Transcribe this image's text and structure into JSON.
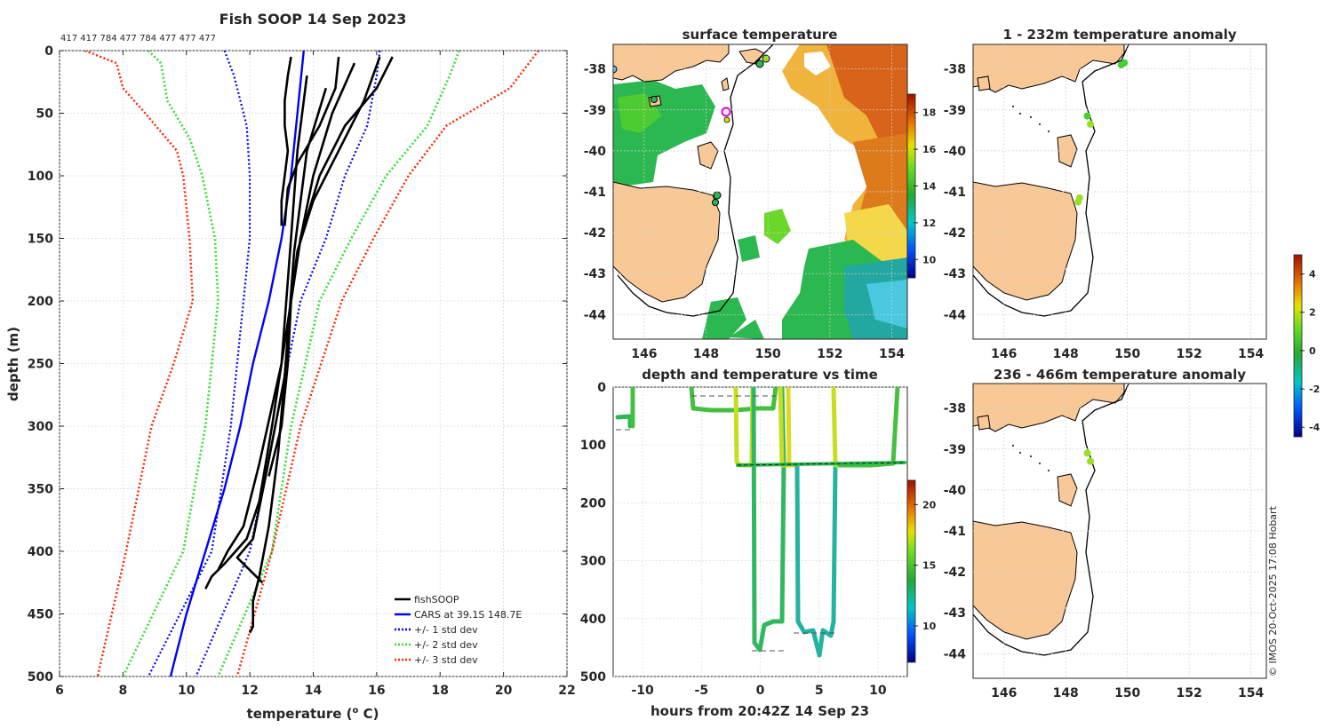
{
  "title": "Fish SOOP 14 Sep 2023",
  "counts_label": "417 417 784 477 784 477 477 477",
  "watermark": "© IMOS 20-Oct-2025 17:08 Hobart",
  "colors": {
    "fish": "#000000",
    "cars": "#0000ff",
    "std1": "#0000ff",
    "std2": "#33dd33",
    "std3": "#ff2200",
    "land": "#f8c896"
  },
  "chart_data": [
    {
      "type": "line",
      "id": "profile",
      "title": "Fish SOOP 14 Sep 2023",
      "xlabel": "temperature (o C)",
      "ylabel": "depth (m)",
      "xlim": [
        6,
        22
      ],
      "ylim": [
        500,
        0
      ],
      "xticks": [
        "6",
        "8",
        "10",
        "12",
        "14",
        "16",
        "18",
        "20",
        "22"
      ],
      "yticks": [
        "0",
        "50",
        "100",
        "150",
        "200",
        "250",
        "300",
        "350",
        "400",
        "450",
        "500"
      ],
      "legend": {
        "position": "bottom-right",
        "entries": [
          "fishSOOP",
          "CARS at 39.1S 148.7E",
          "+/- 1 std dev",
          "+/- 2 std dev",
          "+/- 3 std dev"
        ]
      },
      "series": [
        {
          "name": "CARS at 39.1S 148.7E",
          "depth": [
            0,
            50,
            100,
            150,
            200,
            250,
            300,
            350,
            400,
            450,
            500
          ],
          "temp": [
            13.7,
            13.5,
            13.3,
            13.0,
            12.6,
            12.1,
            11.7,
            11.2,
            10.6,
            10.0,
            9.5
          ]
        },
        {
          "name": "-1 std dev",
          "depth": [
            0,
            20,
            60,
            100,
            150,
            200,
            300,
            400,
            500
          ],
          "temp": [
            11.2,
            11.5,
            11.9,
            12.0,
            12.0,
            11.8,
            11.4,
            10.8,
            8.8
          ]
        },
        {
          "name": "+1 std dev",
          "depth": [
            0,
            20,
            60,
            100,
            150,
            200,
            300,
            400,
            500
          ],
          "temp": [
            16.1,
            16.0,
            15.7,
            15.0,
            14.4,
            13.6,
            12.8,
            12.0,
            10.3
          ]
        },
        {
          "name": "-2 std dev",
          "depth": [
            0,
            10,
            40,
            70,
            100,
            150,
            200,
            300,
            400,
            500
          ],
          "temp": [
            8.8,
            9.2,
            9.4,
            10.1,
            10.5,
            10.9,
            11.0,
            10.6,
            9.9,
            8.0
          ]
        },
        {
          "name": "+2 std dev",
          "depth": [
            0,
            20,
            60,
            100,
            150,
            200,
            300,
            400,
            500
          ],
          "temp": [
            18.6,
            18.3,
            17.6,
            16.3,
            15.2,
            14.2,
            13.3,
            12.7,
            11.0
          ]
        },
        {
          "name": "-3 std dev",
          "depth": [
            0,
            10,
            30,
            50,
            80,
            100,
            150,
            200,
            250,
            300,
            400,
            500
          ],
          "temp": [
            6.8,
            7.8,
            8.0,
            8.7,
            9.7,
            9.9,
            10.1,
            10.2,
            9.6,
            8.9,
            8.1,
            7.2
          ]
        },
        {
          "name": "+3 std dev",
          "depth": [
            0,
            20,
            30,
            60,
            100,
            150,
            200,
            300,
            400,
            500
          ],
          "temp": [
            21.1,
            20.5,
            20.2,
            18.2,
            17.0,
            15.9,
            14.9,
            13.6,
            12.7,
            11.6
          ]
        },
        {
          "name": "fishSOOP",
          "traces": [
            {
              "depth": [
                5,
                20,
                40,
                60,
                80,
                100,
                120,
                140
              ],
              "temp": [
                13.3,
                13.2,
                13.1,
                13.1,
                13.2,
                13.1,
                13.0,
                13.0
              ]
            },
            {
              "depth": [
                5,
                30,
                60,
                90,
                110,
                140
              ],
              "temp": [
                14.8,
                14.7,
                14.2,
                13.5,
                13.2,
                13.1
              ]
            },
            {
              "depth": [
                5,
                40,
                80,
                120,
                160,
                200,
                250,
                300,
                340
              ],
              "temp": [
                16.1,
                15.6,
                14.8,
                14.0,
                13.5,
                13.3,
                13.2,
                13.0,
                12.6
              ]
            },
            {
              "depth": [
                5,
                30,
                60,
                100,
                150,
                200,
                260,
                320,
                380,
                420,
                440,
                460,
                465
              ],
              "temp": [
                16.5,
                16.0,
                15.0,
                14.2,
                13.6,
                13.3,
                13.1,
                12.9,
                12.6,
                12.3,
                12.1,
                12.1,
                12.0
              ]
            },
            {
              "depth": [
                10,
                50,
                100,
                150,
                200,
                300,
                360,
                390,
                410,
                420,
                430
              ],
              "temp": [
                15.3,
                14.6,
                14.0,
                13.6,
                13.3,
                12.7,
                12.3,
                11.9,
                11.2,
                10.8,
                10.6
              ]
            },
            {
              "depth": [
                20,
                80,
                150,
                250,
                330,
                380,
                400,
                415
              ],
              "temp": [
                13.8,
                13.5,
                13.3,
                13.0,
                12.3,
                11.8,
                11.3,
                11.0
              ]
            },
            {
              "depth": [
                30,
                80,
                160,
                260,
                340,
                390,
                405,
                425
              ],
              "temp": [
                14.4,
                13.8,
                13.4,
                13.1,
                12.5,
                12.1,
                11.6,
                12.4
              ]
            }
          ]
        }
      ]
    },
    {
      "type": "heatmap",
      "id": "sst",
      "title": "surface temperature",
      "xticks": [
        "146",
        "148",
        "150",
        "152",
        "154"
      ],
      "yticks": [
        "-38",
        "-39",
        "-40",
        "-41",
        "-42",
        "-43",
        "-44"
      ],
      "colorbar": {
        "ticks": [
          "10",
          "12",
          "14",
          "16",
          "18"
        ],
        "range": [
          9,
          19
        ]
      }
    },
    {
      "type": "scatter",
      "id": "anom-shallow",
      "title": "1 - 232m temperature anomaly",
      "xticks": [
        "146",
        "148",
        "150",
        "152",
        "154"
      ],
      "yticks": [
        "-38",
        "-39",
        "-40",
        "-41",
        "-42",
        "-43",
        "-44"
      ],
      "points": [
        {
          "lon": 149.9,
          "lat": -37.85,
          "anom": 0.5
        },
        {
          "lon": 149.8,
          "lat": -37.9,
          "anom": 0.5
        },
        {
          "lon": 148.7,
          "lat": -39.15,
          "anom": 0.6
        },
        {
          "lon": 148.8,
          "lat": -39.35,
          "anom": 0.8
        },
        {
          "lon": 148.45,
          "lat": -41.15,
          "anom": 0.8
        },
        {
          "lon": 148.4,
          "lat": -41.25,
          "anom": 0.8
        }
      ]
    },
    {
      "type": "scatter",
      "id": "anom-deep",
      "title": "236 - 466m temperature anomaly",
      "xticks": [
        "146",
        "148",
        "150",
        "152",
        "154"
      ],
      "yticks": [
        "-38",
        "-39",
        "-40",
        "-41",
        "-42",
        "-43",
        "-44"
      ],
      "points": [
        {
          "lon": 148.7,
          "lat": -39.1,
          "anom": 0.8
        },
        {
          "lon": 148.8,
          "lat": -39.3,
          "anom": 1.0
        }
      ],
      "colorbar": {
        "ticks": [
          "4",
          "2",
          "0",
          "-2",
          "-4"
        ],
        "range": [
          -4.5,
          5
        ]
      }
    },
    {
      "type": "scatter",
      "id": "depth-time",
      "title": "depth and temperature vs time",
      "xlabel": "hours from 20:42Z 14 Sep 23",
      "xlim": [
        -12.5,
        12.5
      ],
      "ylim": [
        500,
        0
      ],
      "xticks": [
        "-10",
        "-5",
        "0",
        "5",
        "10"
      ],
      "yticks": [
        "0",
        "100",
        "200",
        "300",
        "400",
        "500"
      ],
      "colorbar": {
        "ticks": [
          "10",
          "15",
          "20"
        ],
        "range": [
          7,
          22
        ]
      }
    }
  ]
}
